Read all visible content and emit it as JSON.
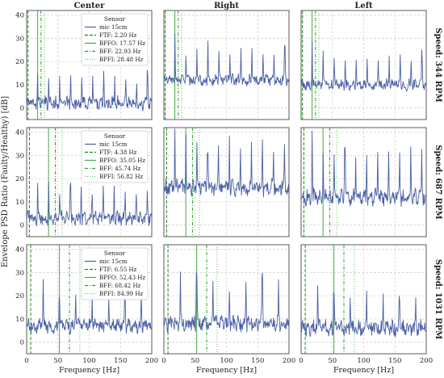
{
  "figure": {
    "ylabel": "Envelope PSD Ratio (Faulty/Healthy) [dB]",
    "xlabel": "Frequency [Hz]",
    "columns": [
      "Center",
      "Right",
      "Left"
    ],
    "x_ticks": [
      0,
      50,
      100,
      150,
      200
    ],
    "y_ticks": [
      0,
      10,
      20,
      30,
      40
    ],
    "line_colors": {
      "signal": "#4a5fa6",
      "FTF": "#1f8a1f",
      "BPFO": "#44aa44",
      "BFF": "#2ca02c",
      "BPFI": "#55cc55"
    }
  },
  "chart_data": [
    {
      "type": "line",
      "row_label": "Speed: 344 RPM",
      "xlim": [
        0,
        200
      ],
      "ylim": [
        -5,
        42
      ],
      "grid": true,
      "legend": {
        "title": "Sensor",
        "placement": "top-right",
        "entries": [
          "mic 15cm",
          "FTF: 2.20 Hz",
          "BPFO: 17.57 Hz",
          "BFF: 22.93 Hz",
          "BPFI: 28.48 Hz"
        ]
      },
      "markers_hz": {
        "FTF": 2.2,
        "BPFO": 17.57,
        "BFF": 22.93,
        "BPFI": 28.48
      },
      "peak_freq_hz": 17.57,
      "series": [
        {
          "column": "Center",
          "baseline": 2,
          "peak_height": 12,
          "noise": 2.5
        },
        {
          "column": "Right",
          "baseline": 12,
          "peak_height": 14,
          "noise": 2
        },
        {
          "column": "Left",
          "baseline": 10,
          "peak_height": 13,
          "noise": 2
        }
      ]
    },
    {
      "type": "line",
      "row_label": "Speed: 687 RPM",
      "xlim": [
        0,
        200
      ],
      "ylim": [
        -5,
        42
      ],
      "grid": true,
      "legend": {
        "title": "Sensor",
        "placement": "top-right",
        "entries": [
          "mic 15cm",
          "FTF: 4.38 Hz",
          "BPFO: 35.05 Hz",
          "BFF: 45.74 Hz",
          "BPFI: 56.82 Hz"
        ]
      },
      "markers_hz": {
        "FTF": 4.38,
        "BPFO": 35.05,
        "BFF": 45.74,
        "BPFI": 56.82
      },
      "peak_freq_hz": 17.5,
      "series": [
        {
          "column": "Center",
          "baseline": 3,
          "peak_height": 14,
          "noise": 2.5
        },
        {
          "column": "Right",
          "baseline": 16,
          "peak_height": 20,
          "noise": 3
        },
        {
          "column": "Left",
          "baseline": 12,
          "peak_height": 20,
          "noise": 3
        }
      ]
    },
    {
      "type": "line",
      "row_label": "Speed: 1031 RPM",
      "xlim": [
        0,
        200
      ],
      "ylim": [
        -5,
        42
      ],
      "grid": true,
      "legend": {
        "title": "Sensor",
        "placement": "top-right",
        "entries": [
          "mic 15cm",
          "FTF: 6.55 Hz",
          "BPFO: 52.43 Hz",
          "BFF: 68.42 Hz",
          "BPFI: 84.99 Hz"
        ]
      },
      "markers_hz": {
        "FTF": 6.55,
        "BPFO": 52.43,
        "BFF": 68.42,
        "BPFI": 84.99
      },
      "peak_freq_hz": 26.2,
      "series": [
        {
          "column": "Center",
          "baseline": 7,
          "peak_height": 14,
          "noise": 2.5
        },
        {
          "column": "Right",
          "baseline": 8,
          "peak_height": 20,
          "noise": 3
        },
        {
          "column": "Left",
          "baseline": 6,
          "peak_height": 16,
          "noise": 3
        }
      ]
    }
  ]
}
